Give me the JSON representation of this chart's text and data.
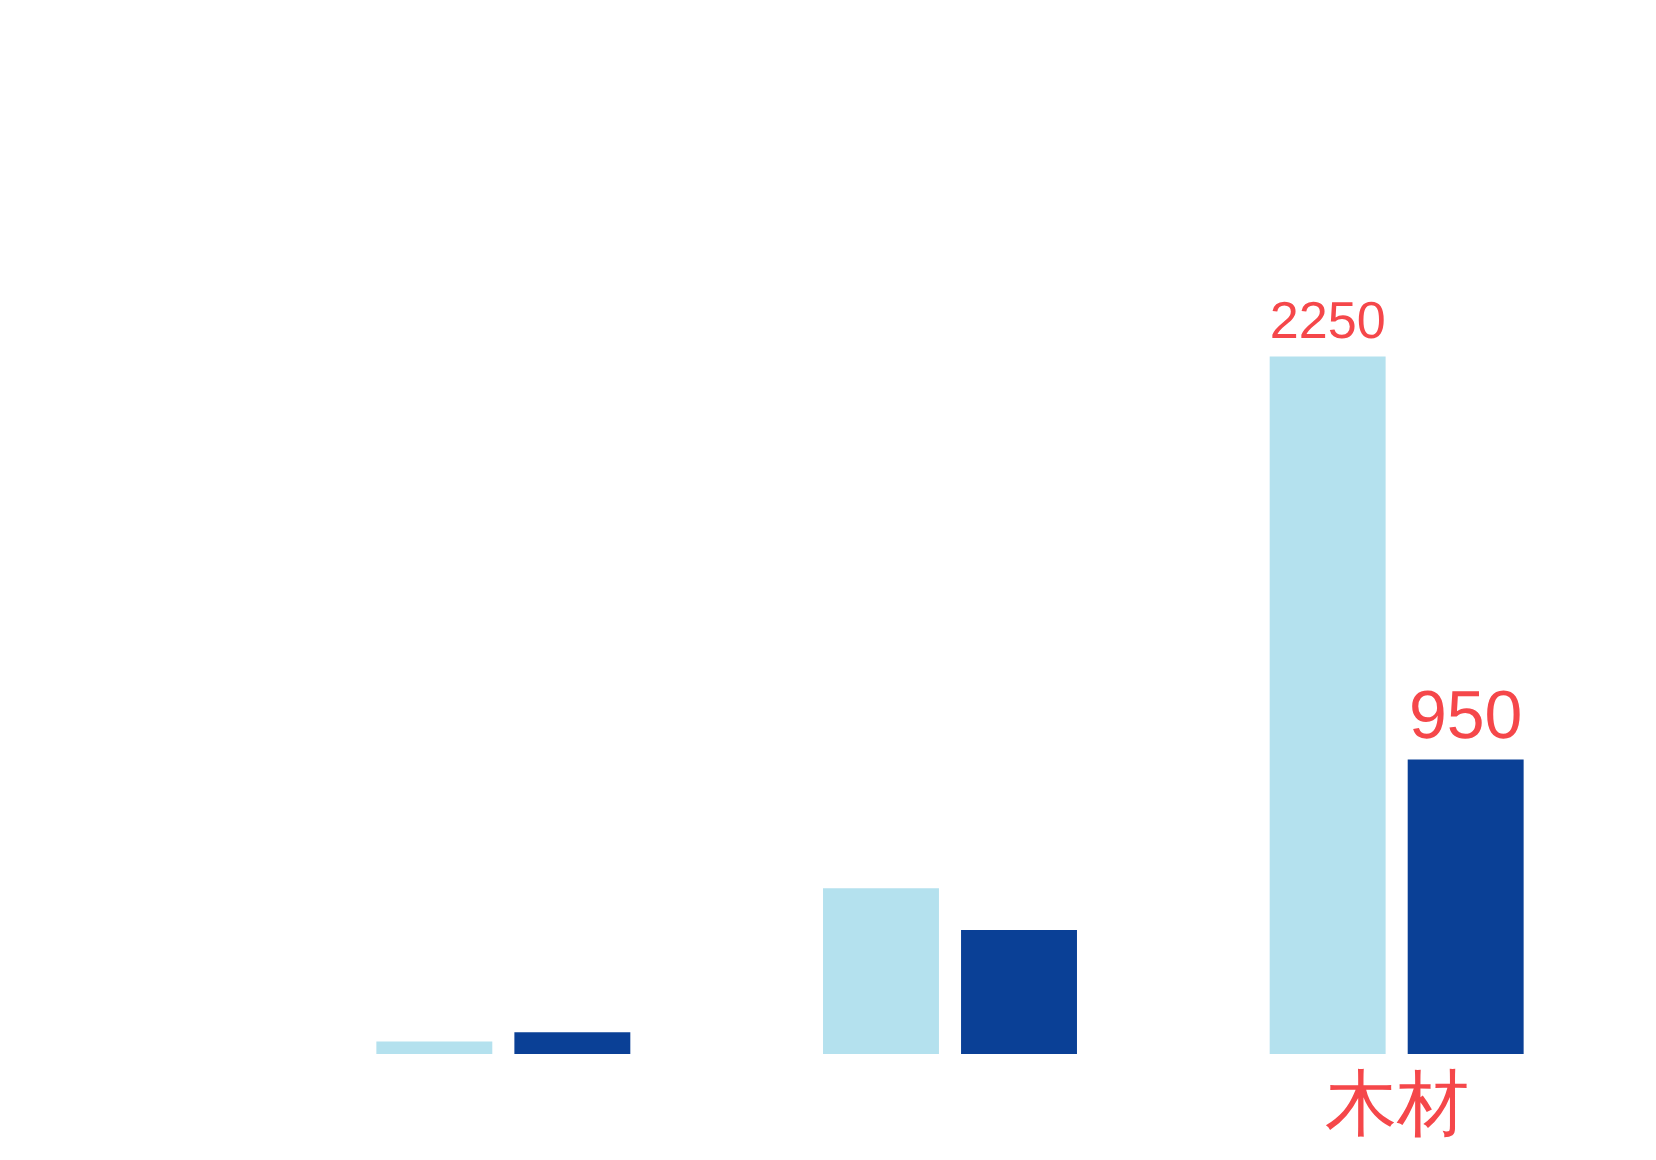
{
  "chart_data": {
    "type": "bar",
    "categories": [
      null,
      null,
      "木材"
    ],
    "series": [
      {
        "color": "#b4e1ee",
        "values": [
          40,
          535,
          2250
        ],
        "value_labels": [
          null,
          null,
          "2250"
        ]
      },
      {
        "color": "#0a4096",
        "values": [
          70,
          400,
          950
        ],
        "value_labels": [
          null,
          null,
          "950"
        ]
      }
    ],
    "ylim": [
      0,
      3400
    ],
    "tick_labels": "x"
  }
}
